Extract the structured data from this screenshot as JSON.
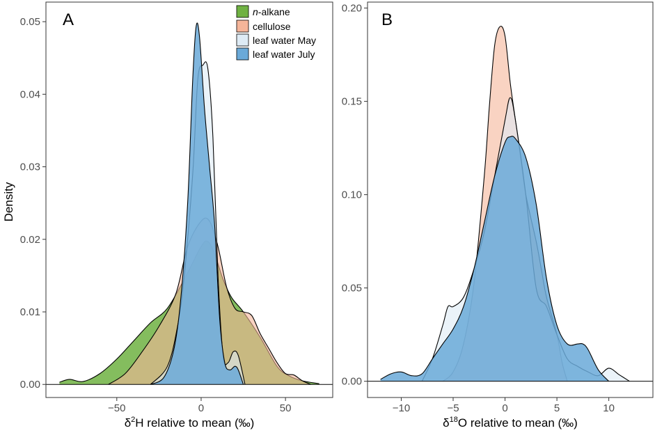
{
  "figure": {
    "ylabel": "Density"
  },
  "legend": {
    "placement": "top-right of panel A",
    "entries": [
      {
        "prefix": "n",
        "label": "-alkane",
        "color": "#6fb142"
      },
      {
        "prefix": "",
        "label": "cellulose",
        "color": "#f5b599"
      },
      {
        "prefix": "",
        "label": "leaf water May",
        "color": "#deebf5"
      },
      {
        "prefix": "",
        "label": "leaf water July",
        "color": "#6aa9d8"
      }
    ]
  },
  "chart_data": [
    {
      "type": "area",
      "panel": "A",
      "xlabel_prefix": "δ",
      "xlabel_sup": "2",
      "xlabel_suffix": "H relative to mean (‰)",
      "ylabel": "Density",
      "xlim": [
        -92,
        78
      ],
      "ylim": [
        -0.0018,
        0.0527
      ],
      "xticks": [
        -50,
        0,
        50
      ],
      "xtick_labels": [
        "−50",
        "0",
        "50"
      ],
      "yticks": [
        0.0,
        0.01,
        0.02,
        0.03,
        0.04,
        0.05
      ],
      "ytick_labels": [
        "0.00",
        "0.01",
        "0.02",
        "0.03",
        "0.04",
        "0.05"
      ],
      "grid": false,
      "series": [
        {
          "name": "n-alkane",
          "color": "#6fb142",
          "opacity": 0.85,
          "x": [
            -84,
            -78,
            -70,
            -60,
            -50,
            -40,
            -30,
            -20,
            -10,
            0,
            4,
            8,
            13,
            18,
            25,
            35,
            45,
            52,
            60,
            70
          ],
          "y": [
            0.0003,
            0.0007,
            0.0004,
            0.0015,
            0.0035,
            0.006,
            0.0085,
            0.0105,
            0.0145,
            0.019,
            0.0197,
            0.018,
            0.0145,
            0.012,
            0.01,
            0.0065,
            0.0025,
            0.0012,
            0.0005,
            0.0001
          ]
        },
        {
          "name": "cellulose",
          "color": "#f5b599",
          "opacity": 0.6,
          "x": [
            -55,
            -45,
            -35,
            -25,
            -15,
            -8,
            0,
            5,
            10,
            15,
            20,
            25,
            30,
            35,
            40,
            45,
            50,
            55,
            60,
            65
          ],
          "y": [
            0.0,
            0.0015,
            0.0045,
            0.008,
            0.0125,
            0.019,
            0.0225,
            0.0225,
            0.019,
            0.0135,
            0.0105,
            0.01,
            0.0095,
            0.007,
            0.005,
            0.003,
            0.0015,
            0.0013,
            0.0005,
            0.0
          ]
        },
        {
          "name": "leaf water May",
          "color": "#deebf5",
          "opacity": 0.6,
          "x": [
            -30,
            -20,
            -14,
            -10,
            -5,
            -2,
            1,
            4,
            7,
            10,
            13,
            16,
            19,
            22,
            26
          ],
          "y": [
            0.0,
            0.0025,
            0.008,
            0.015,
            0.029,
            0.042,
            0.044,
            0.0435,
            0.034,
            0.015,
            0.004,
            0.003,
            0.0045,
            0.004,
            0.0
          ]
        },
        {
          "name": "leaf water July",
          "color": "#6aa9d8",
          "opacity": 0.85,
          "x": [
            -30,
            -22,
            -16,
            -12,
            -8,
            -5,
            -3,
            -1,
            2,
            5,
            8,
            11,
            14,
            17,
            20,
            22,
            25
          ],
          "y": [
            0.0,
            0.001,
            0.005,
            0.012,
            0.025,
            0.042,
            0.0493,
            0.048,
            0.038,
            0.03,
            0.022,
            0.009,
            0.003,
            0.002,
            0.0025,
            0.002,
            0.0
          ]
        }
      ]
    },
    {
      "type": "area",
      "panel": "B",
      "xlabel_prefix": "δ",
      "xlabel_sup": "18",
      "xlabel_suffix": "O relative to mean (‰)",
      "ylabel": "",
      "xlim": [
        -13.25,
        14.25
      ],
      "ylim": [
        -0.0087,
        0.2032
      ],
      "xticks": [
        -10,
        -5,
        0,
        5,
        10
      ],
      "xtick_labels": [
        "−10",
        "−5",
        "0",
        "5",
        "10"
      ],
      "yticks": [
        0.0,
        0.05,
        0.1,
        0.15,
        0.2
      ],
      "ytick_labels": [
        "0.00",
        "0.05",
        "0.10",
        "0.15",
        "0.20"
      ],
      "grid": false,
      "series": [
        {
          "name": "n-alkane",
          "color": "#6fb142",
          "opacity": 0.85,
          "x": [],
          "y": []
        },
        {
          "name": "cellulose",
          "color": "#f5b599",
          "opacity": 0.6,
          "x": [
            -6,
            -5,
            -4,
            -3,
            -2,
            -1.5,
            -1,
            -0.5,
            0,
            0.5,
            1,
            1.5,
            2,
            3,
            3.5,
            4,
            5,
            5.5,
            6
          ],
          "y": [
            0.0,
            0.005,
            0.02,
            0.052,
            0.11,
            0.148,
            0.18,
            0.19,
            0.185,
            0.16,
            0.14,
            0.12,
            0.1,
            0.075,
            0.06,
            0.045,
            0.025,
            0.01,
            0.0
          ]
        },
        {
          "name": "leaf water May",
          "color": "#deebf5",
          "opacity": 0.6,
          "x": [
            -8,
            -7,
            -6,
            -5.5,
            -5,
            -4,
            -3,
            -2,
            -1,
            0,
            0.5,
            1,
            2,
            3,
            4,
            5,
            6,
            7,
            8,
            9,
            10,
            11,
            12
          ],
          "y": [
            0.0,
            0.012,
            0.03,
            0.04,
            0.04,
            0.045,
            0.06,
            0.08,
            0.11,
            0.14,
            0.152,
            0.14,
            0.1,
            0.05,
            0.04,
            0.025,
            0.012,
            0.008,
            0.005,
            0.003,
            0.007,
            0.0035,
            0.0
          ]
        },
        {
          "name": "leaf water July",
          "color": "#6aa9d8",
          "opacity": 0.85,
          "x": [
            -12,
            -11,
            -10,
            -9,
            -8,
            -7,
            -6,
            -5,
            -4,
            -3,
            -2,
            -1,
            0,
            0.5,
            1,
            2,
            3,
            4,
            5,
            6,
            7,
            7.5,
            8,
            9,
            10
          ],
          "y": [
            0.001,
            0.004,
            0.005,
            0.003,
            0.004,
            0.012,
            0.02,
            0.028,
            0.04,
            0.06,
            0.085,
            0.11,
            0.128,
            0.131,
            0.13,
            0.12,
            0.095,
            0.055,
            0.03,
            0.02,
            0.02,
            0.02,
            0.017,
            0.006,
            0.0
          ]
        }
      ]
    }
  ]
}
